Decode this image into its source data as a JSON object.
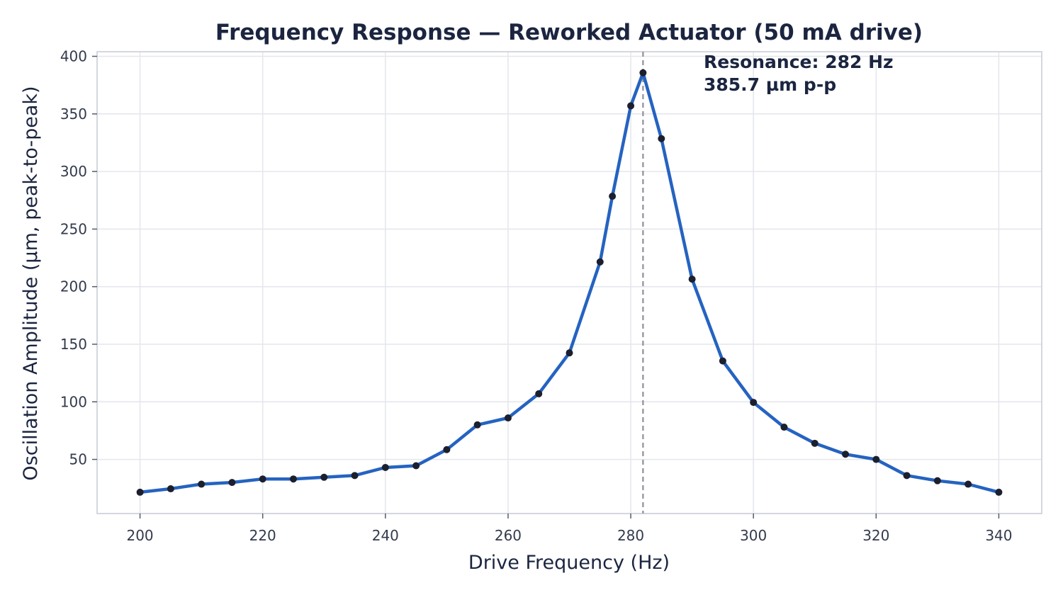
{
  "chart_data": {
    "type": "line",
    "title": "Frequency Response — Reworked Actuator (50 mA drive)",
    "xlabel": "Drive Frequency (Hz)",
    "ylabel": "Oscillation Amplitude (µm, peak-to-peak)",
    "xlim": [
      193,
      347
    ],
    "ylim": [
      3,
      404
    ],
    "xticks": [
      200,
      220,
      240,
      260,
      280,
      300,
      320,
      340
    ],
    "yticks": [
      50,
      100,
      150,
      200,
      250,
      300,
      350,
      400
    ],
    "grid": true,
    "series": [
      {
        "color": "#2563c0",
        "marker_color": "#1b1f2e",
        "x": [
          200,
          205,
          210,
          215,
          220,
          225,
          230,
          235,
          240,
          245,
          250,
          255,
          260,
          265,
          270,
          275,
          277,
          280,
          282,
          285,
          290,
          295,
          300,
          305,
          310,
          315,
          320,
          325,
          330,
          335,
          340
        ],
        "y": [
          21.5,
          24.5,
          28.5,
          30,
          33,
          33,
          34.5,
          36,
          43,
          44.5,
          58.5,
          80,
          86,
          107,
          142.5,
          221.5,
          278.5,
          357,
          385.7,
          328.5,
          206.5,
          135.5,
          99.5,
          78,
          64,
          54.5,
          50,
          36,
          31.5,
          28.5,
          21.5
        ]
      }
    ],
    "reference_line": {
      "x": 282,
      "style": "dashed",
      "color": "#8e9099"
    },
    "annotation": {
      "line1": "Resonance: 282 Hz",
      "line2": "385.7 µm p-p"
    }
  }
}
